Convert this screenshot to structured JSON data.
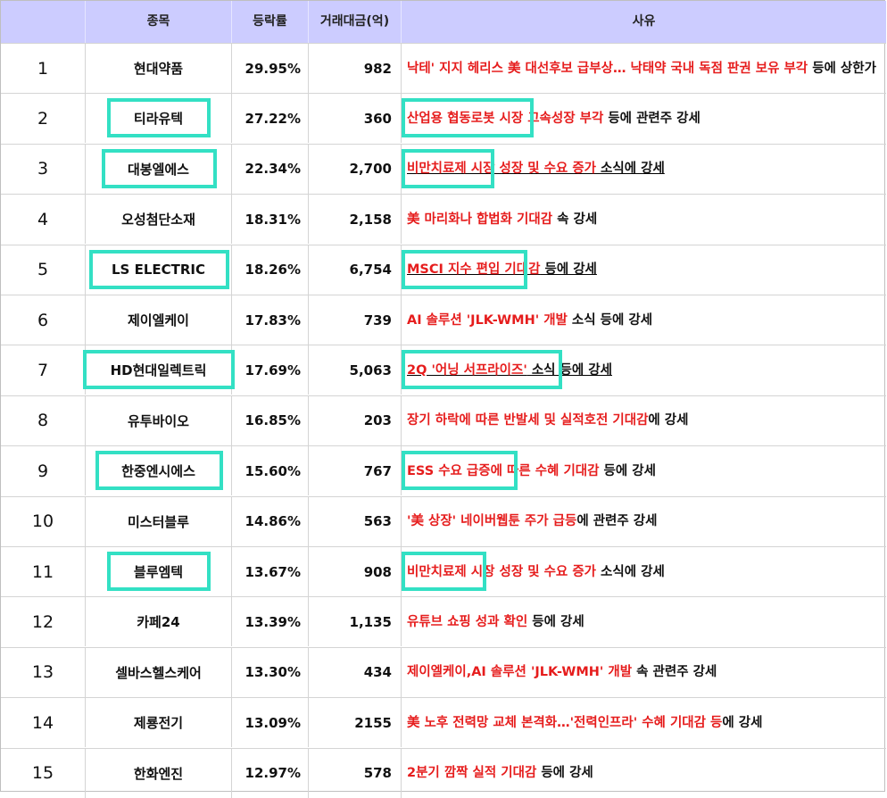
{
  "header": {
    "col_name": "종목",
    "col_rate": "등락률",
    "col_volume": "거래대금(억)",
    "col_reason": "사유"
  },
  "rows": [
    {
      "no": "1",
      "name": "현대약품",
      "rate": "29.95%",
      "volume": "982",
      "reason_red": "낙테' 지지 헤리스 美 대선후보 급부상… 낙태약 국내 독점 판권 보유 부각",
      "reason_black": " 등에 상한가"
    },
    {
      "no": "2",
      "name": "티라유텍",
      "rate": "27.22%",
      "volume": "360",
      "reason_red": "산업용 협동로봇 시장 고속성장 부각",
      "reason_black": " 등에 관련주 강세"
    },
    {
      "no": "3",
      "name": "대봉엘에스",
      "rate": "22.34%",
      "volume": "2,700",
      "reason_red": "비만치료제 시장 성장 및 수요 증가",
      "reason_black": " 소식에 강세"
    },
    {
      "no": "4",
      "name": "오성첨단소재",
      "rate": "18.31%",
      "volume": "2,158",
      "reason_red": "美 마리화나 합법화 기대감",
      "reason_black": " 속 강세"
    },
    {
      "no": "5",
      "name": "LS ELECTRIC",
      "rate": "18.26%",
      "volume": "6,754",
      "reason_red": "MSCI 지수 편입 기대감",
      "reason_black": " 등에 강세"
    },
    {
      "no": "6",
      "name": "제이엘케이",
      "rate": "17.83%",
      "volume": "739",
      "reason_red": "AI 솔루션 'JLK-WMH' 개발",
      "reason_black": " 소식 등에 강세"
    },
    {
      "no": "7",
      "name": "HD현대일렉트릭",
      "rate": "17.69%",
      "volume": "5,063",
      "reason_red": "2Q '어닝 서프라이즈'",
      "reason_black": " 소식 등에 강세"
    },
    {
      "no": "8",
      "name": "유투바이오",
      "rate": "16.85%",
      "volume": "203",
      "reason_red": "장기 하락에 따른 반발세 및 실적호전 기대감",
      "reason_black": "에 강세"
    },
    {
      "no": "9",
      "name": "한중엔시에스",
      "rate": "15.60%",
      "volume": "767",
      "reason_red": "ESS 수요 급증에 따른 수혜 기대감",
      "reason_black": " 등에 강세"
    },
    {
      "no": "10",
      "name": "미스터블루",
      "rate": "14.86%",
      "volume": "563",
      "reason_red": "'美 상장' 네이버웹툰 주가 급등",
      "reason_black": "에 관련주 강세"
    },
    {
      "no": "11",
      "name": "블루엠텍",
      "rate": "13.67%",
      "volume": "908",
      "reason_red": "비만치료제 시장 성장 및 수요 증가",
      "reason_black": " 소식에 강세"
    },
    {
      "no": "12",
      "name": "카페24",
      "rate": "13.39%",
      "volume": "1,135",
      "reason_red": "유튜브 쇼핑 성과 확인",
      "reason_black": " 등에 강세"
    },
    {
      "no": "13",
      "name": "셀바스헬스케어",
      "rate": "13.30%",
      "volume": "434",
      "reason_red": "제이엘케이,AI 솔루션 'JLK-WMH' 개발",
      "reason_black": " 속 관련주 강세"
    },
    {
      "no": "14",
      "name": "제룡전기",
      "rate": "13.09%",
      "volume": "2155",
      "reason_red": "美 노후 전력망 교체 본격화…'전력인프라' 수혜 기대감 등",
      "reason_black": "에 강세"
    },
    {
      "no": "15",
      "name": "한화엔진",
      "rate": "12.97%",
      "volume": "578",
      "reason_red": "2분기 깜짝 실적 기대감",
      "reason_black": " 등에 강세"
    }
  ],
  "colors": {
    "header_bg": "#ccccff",
    "highlight_box": "#33e0c4",
    "reason_red": "#e61d1d"
  }
}
